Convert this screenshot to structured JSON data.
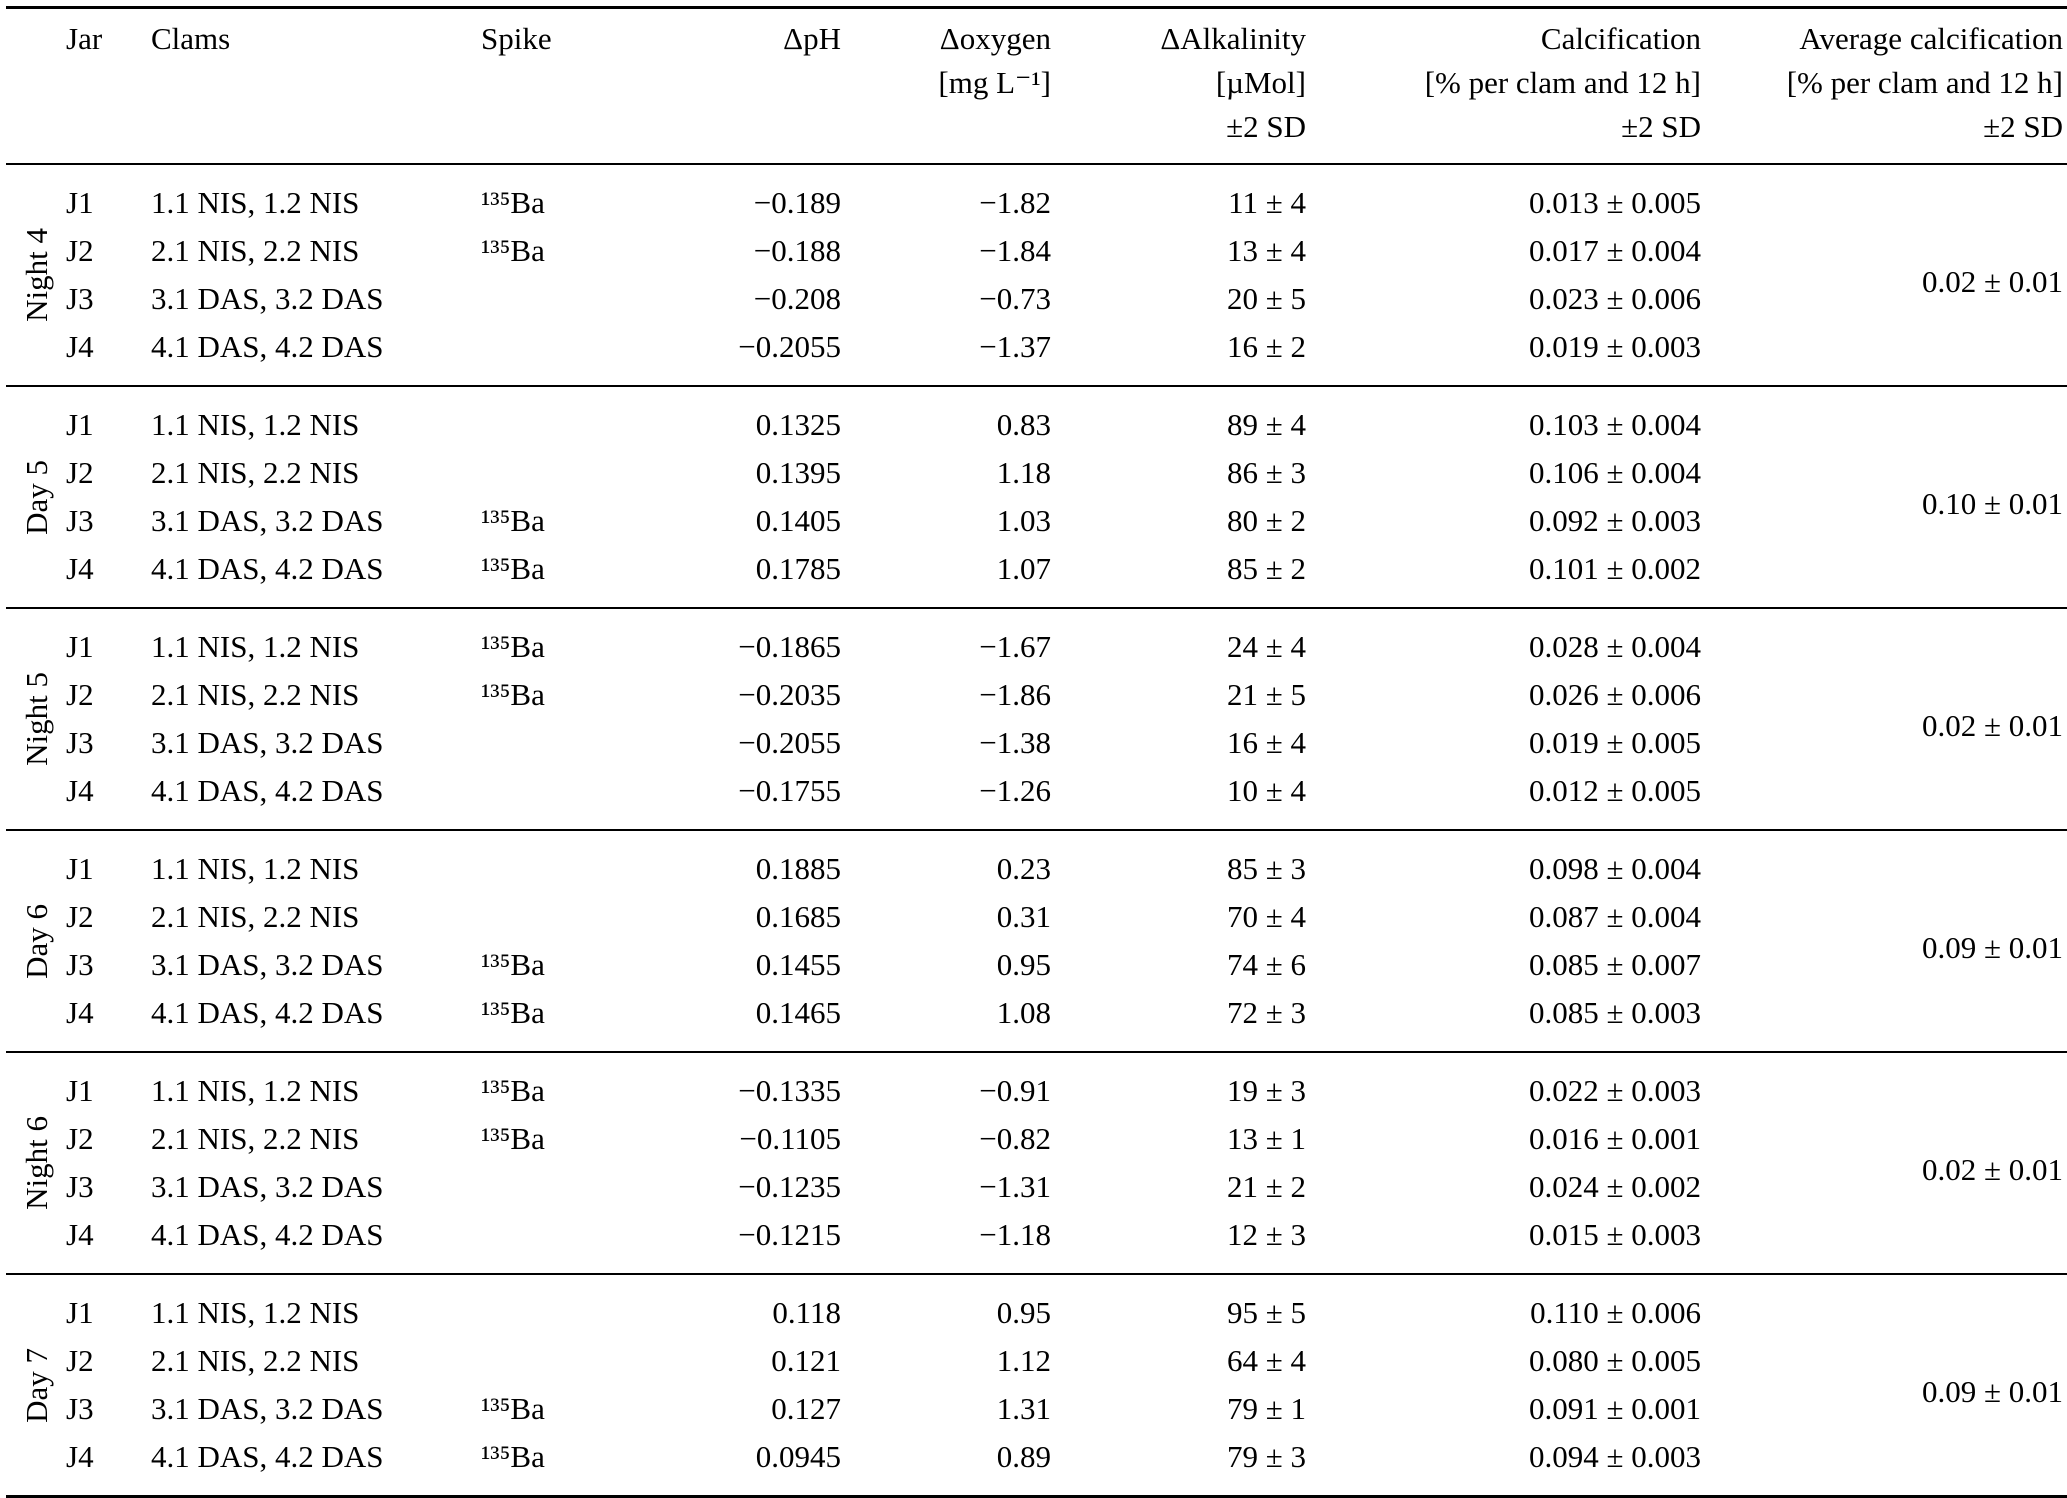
{
  "colors": {
    "text": "#000000",
    "background": "#ffffff",
    "rule": "#000000"
  },
  "table": {
    "headers": {
      "jar": "Jar",
      "clams": "Clams",
      "spike": "Spike",
      "delta_ph": "ΔpH",
      "delta_oxygen": [
        "Δoxygen",
        "[mg L⁻¹]"
      ],
      "delta_alkalinity": [
        "ΔAlkalinity",
        "[µMol]",
        "±2 SD"
      ],
      "calcification": [
        "Calcification",
        "[% per clam and 12 h]",
        "±2 SD"
      ],
      "average_calcification": [
        "Average calcification",
        "[% per clam and 12 h]",
        "±2 SD"
      ]
    },
    "groups": [
      {
        "label": "Night 4",
        "average": "0.02 ± 0.01",
        "rows": [
          {
            "jar": "J1",
            "clams": "1.1 NIS, 1.2 NIS",
            "spike": "¹³⁵Ba",
            "delta_ph": "−0.189",
            "delta_oxygen": "−1.82",
            "delta_alkalinity": "11 ± 4",
            "calcification": "0.013 ± 0.005"
          },
          {
            "jar": "J2",
            "clams": "2.1 NIS, 2.2 NIS",
            "spike": "¹³⁵Ba",
            "delta_ph": "−0.188",
            "delta_oxygen": "−1.84",
            "delta_alkalinity": "13 ± 4",
            "calcification": "0.017 ± 0.004"
          },
          {
            "jar": "J3",
            "clams": "3.1 DAS, 3.2 DAS",
            "spike": "",
            "delta_ph": "−0.208",
            "delta_oxygen": "−0.73",
            "delta_alkalinity": "20 ± 5",
            "calcification": "0.023 ± 0.006"
          },
          {
            "jar": "J4",
            "clams": "4.1 DAS, 4.2 DAS",
            "spike": "",
            "delta_ph": "−0.2055",
            "delta_oxygen": "−1.37",
            "delta_alkalinity": "16 ± 2",
            "calcification": "0.019 ± 0.003"
          }
        ]
      },
      {
        "label": "Day 5",
        "average": "0.10 ± 0.01",
        "rows": [
          {
            "jar": "J1",
            "clams": "1.1 NIS, 1.2 NIS",
            "spike": "",
            "delta_ph": "0.1325",
            "delta_oxygen": "0.83",
            "delta_alkalinity": "89 ± 4",
            "calcification": "0.103 ± 0.004"
          },
          {
            "jar": "J2",
            "clams": "2.1 NIS, 2.2 NIS",
            "spike": "",
            "delta_ph": "0.1395",
            "delta_oxygen": "1.18",
            "delta_alkalinity": "86 ± 3",
            "calcification": "0.106 ± 0.004"
          },
          {
            "jar": "J3",
            "clams": "3.1 DAS, 3.2 DAS",
            "spike": "¹³⁵Ba",
            "delta_ph": "0.1405",
            "delta_oxygen": "1.03",
            "delta_alkalinity": "80 ± 2",
            "calcification": "0.092 ± 0.003"
          },
          {
            "jar": "J4",
            "clams": "4.1 DAS, 4.2 DAS",
            "spike": "¹³⁵Ba",
            "delta_ph": "0.1785",
            "delta_oxygen": "1.07",
            "delta_alkalinity": "85 ± 2",
            "calcification": "0.101 ± 0.002"
          }
        ]
      },
      {
        "label": "Night 5",
        "average": "0.02 ± 0.01",
        "rows": [
          {
            "jar": "J1",
            "clams": "1.1 NIS, 1.2 NIS",
            "spike": "¹³⁵Ba",
            "delta_ph": "−0.1865",
            "delta_oxygen": "−1.67",
            "delta_alkalinity": "24 ± 4",
            "calcification": "0.028 ± 0.004"
          },
          {
            "jar": "J2",
            "clams": "2.1 NIS, 2.2 NIS",
            "spike": "¹³⁵Ba",
            "delta_ph": "−0.2035",
            "delta_oxygen": "−1.86",
            "delta_alkalinity": "21 ± 5",
            "calcification": "0.026 ± 0.006"
          },
          {
            "jar": "J3",
            "clams": "3.1 DAS, 3.2 DAS",
            "spike": "",
            "delta_ph": "−0.2055",
            "delta_oxygen": "−1.38",
            "delta_alkalinity": "16 ± 4",
            "calcification": "0.019 ± 0.005"
          },
          {
            "jar": "J4",
            "clams": "4.1 DAS, 4.2 DAS",
            "spike": "",
            "delta_ph": "−0.1755",
            "delta_oxygen": "−1.26",
            "delta_alkalinity": "10 ± 4",
            "calcification": "0.012 ± 0.005"
          }
        ]
      },
      {
        "label": "Day 6",
        "average": "0.09 ± 0.01",
        "rows": [
          {
            "jar": "J1",
            "clams": "1.1 NIS, 1.2 NIS",
            "spike": "",
            "delta_ph": "0.1885",
            "delta_oxygen": "0.23",
            "delta_alkalinity": "85 ± 3",
            "calcification": "0.098 ± 0.004"
          },
          {
            "jar": "J2",
            "clams": "2.1 NIS, 2.2 NIS",
            "spike": "",
            "delta_ph": "0.1685",
            "delta_oxygen": "0.31",
            "delta_alkalinity": "70 ± 4",
            "calcification": "0.087 ± 0.004"
          },
          {
            "jar": "J3",
            "clams": "3.1 DAS, 3.2 DAS",
            "spike": "¹³⁵Ba",
            "delta_ph": "0.1455",
            "delta_oxygen": "0.95",
            "delta_alkalinity": "74 ± 6",
            "calcification": "0.085 ± 0.007"
          },
          {
            "jar": "J4",
            "clams": "4.1 DAS, 4.2 DAS",
            "spike": "¹³⁵Ba",
            "delta_ph": "0.1465",
            "delta_oxygen": "1.08",
            "delta_alkalinity": "72 ± 3",
            "calcification": "0.085 ± 0.003"
          }
        ]
      },
      {
        "label": "Night 6",
        "average": "0.02 ± 0.01",
        "rows": [
          {
            "jar": "J1",
            "clams": "1.1 NIS, 1.2 NIS",
            "spike": "¹³⁵Ba",
            "delta_ph": "−0.1335",
            "delta_oxygen": "−0.91",
            "delta_alkalinity": "19 ± 3",
            "calcification": "0.022 ± 0.003"
          },
          {
            "jar": "J2",
            "clams": "2.1 NIS, 2.2 NIS",
            "spike": "¹³⁵Ba",
            "delta_ph": "−0.1105",
            "delta_oxygen": "−0.82",
            "delta_alkalinity": "13 ± 1",
            "calcification": "0.016 ± 0.001"
          },
          {
            "jar": "J3",
            "clams": "3.1 DAS, 3.2 DAS",
            "spike": "",
            "delta_ph": "−0.1235",
            "delta_oxygen": "−1.31",
            "delta_alkalinity": "21 ± 2",
            "calcification": "0.024 ± 0.002"
          },
          {
            "jar": "J4",
            "clams": "4.1 DAS, 4.2 DAS",
            "spike": "",
            "delta_ph": "−0.1215",
            "delta_oxygen": "−1.18",
            "delta_alkalinity": "12 ± 3",
            "calcification": "0.015 ± 0.003"
          }
        ]
      },
      {
        "label": "Day 7",
        "average": "0.09 ± 0.01",
        "rows": [
          {
            "jar": "J1",
            "clams": "1.1 NIS, 1.2 NIS",
            "spike": "",
            "delta_ph": "0.118",
            "delta_oxygen": "0.95",
            "delta_alkalinity": "95 ± 5",
            "calcification": "0.110 ± 0.006"
          },
          {
            "jar": "J2",
            "clams": "2.1 NIS, 2.2 NIS",
            "spike": "",
            "delta_ph": "0.121",
            "delta_oxygen": "1.12",
            "delta_alkalinity": "64 ± 4",
            "calcification": "0.080 ± 0.005"
          },
          {
            "jar": "J3",
            "clams": "3.1 DAS, 3.2 DAS",
            "spike": "¹³⁵Ba",
            "delta_ph": "0.127",
            "delta_oxygen": "1.31",
            "delta_alkalinity": "79 ± 1",
            "calcification": "0.091 ± 0.001"
          },
          {
            "jar": "J4",
            "clams": "4.1 DAS, 4.2 DAS",
            "spike": "¹³⁵Ba",
            "delta_ph": "0.0945",
            "delta_oxygen": "0.89",
            "delta_alkalinity": "79 ± 3",
            "calcification": "0.094 ± 0.003"
          }
        ]
      }
    ]
  }
}
